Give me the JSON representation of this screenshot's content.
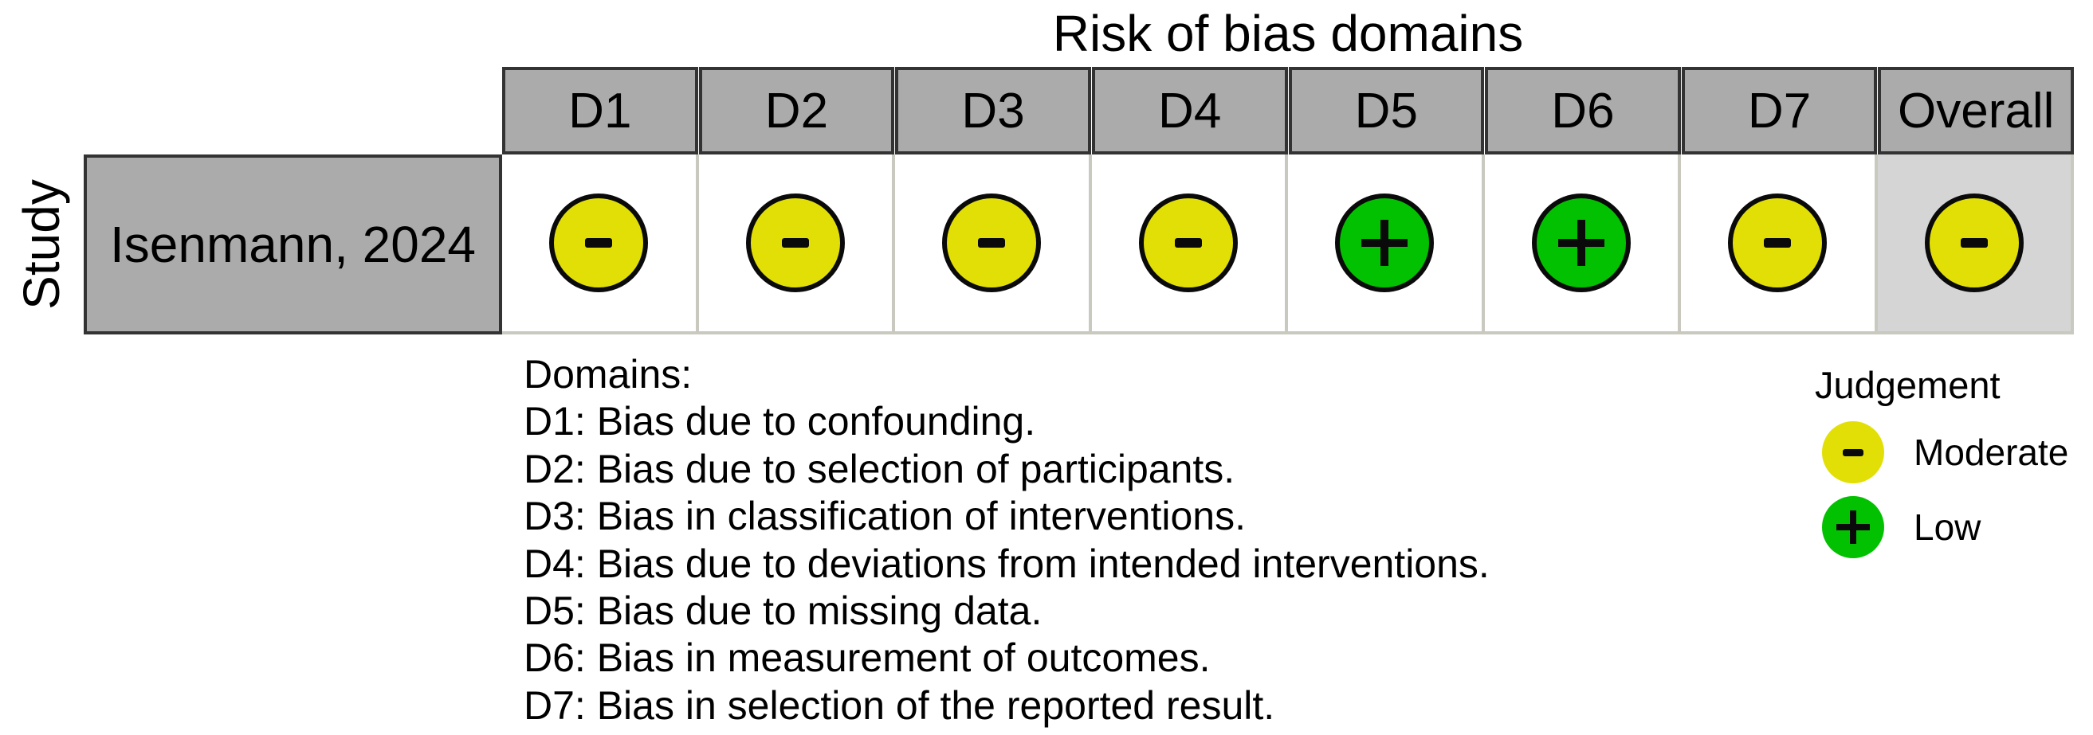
{
  "title": "Risk of bias domains",
  "axis_label": "Study",
  "table": {
    "columns": [
      "D1",
      "D2",
      "D3",
      "D4",
      "D5",
      "D6",
      "D7",
      "Overall"
    ],
    "rows": [
      {
        "study": "Isenmann, 2024",
        "cells": [
          {
            "column": "D1",
            "judgement": "Moderate",
            "symbol": "-"
          },
          {
            "column": "D2",
            "judgement": "Moderate",
            "symbol": "-"
          },
          {
            "column": "D3",
            "judgement": "Moderate",
            "symbol": "-"
          },
          {
            "column": "D4",
            "judgement": "Moderate",
            "symbol": "-"
          },
          {
            "column": "D5",
            "judgement": "Low",
            "symbol": "+"
          },
          {
            "column": "D6",
            "judgement": "Low",
            "symbol": "+"
          },
          {
            "column": "D7",
            "judgement": "Moderate",
            "symbol": "-"
          },
          {
            "column": "Overall",
            "judgement": "Moderate",
            "symbol": "-"
          }
        ]
      }
    ]
  },
  "domains_legend": {
    "heading": "Domains:",
    "items": [
      "D1: Bias due to confounding.",
      "D2: Bias due to selection of participants.",
      "D3: Bias in classification of interventions.",
      "D4: Bias due to deviations from intended interventions.",
      "D5: Bias due to missing data.",
      "D6: Bias in measurement of outcomes.",
      "D7: Bias in selection of the reported result."
    ]
  },
  "judgement_legend": {
    "heading": "Judgement",
    "items": [
      {
        "label": "Moderate",
        "judgement": "Moderate",
        "symbol": "-"
      },
      {
        "label": "Low",
        "judgement": "Low",
        "symbol": "+"
      }
    ]
  },
  "colors": {
    "moderate": "#E2DF07",
    "low": "#02C100",
    "header-bg": "#ABABAB",
    "overall-bg": "#D5D5D5",
    "dark-border": "#333333",
    "light-border": "#C9C9C0",
    "symbol": "#0A0A0A"
  },
  "chart_data": {
    "type": "table",
    "title": "Risk of bias domains",
    "row_axis_label": "Study",
    "columns": [
      "D1",
      "D2",
      "D3",
      "D4",
      "D5",
      "D6",
      "D7",
      "Overall"
    ],
    "rows": [
      {
        "study": "Isenmann, 2024",
        "values": [
          "Moderate",
          "Moderate",
          "Moderate",
          "Moderate",
          "Low",
          "Low",
          "Moderate",
          "Moderate"
        ]
      }
    ],
    "judgement_levels": [
      {
        "label": "Moderate",
        "symbol": "-",
        "color": "#E2DF07"
      },
      {
        "label": "Low",
        "symbol": "+",
        "color": "#02C100"
      }
    ],
    "domain_descriptions": [
      "D1: Bias due to confounding.",
      "D2: Bias due to selection of participants.",
      "D3: Bias in classification of interventions.",
      "D4: Bias due to deviations from intended interventions.",
      "D5: Bias due to missing data.",
      "D6: Bias in measurement of outcomes.",
      "D7: Bias in selection of the reported result."
    ]
  }
}
